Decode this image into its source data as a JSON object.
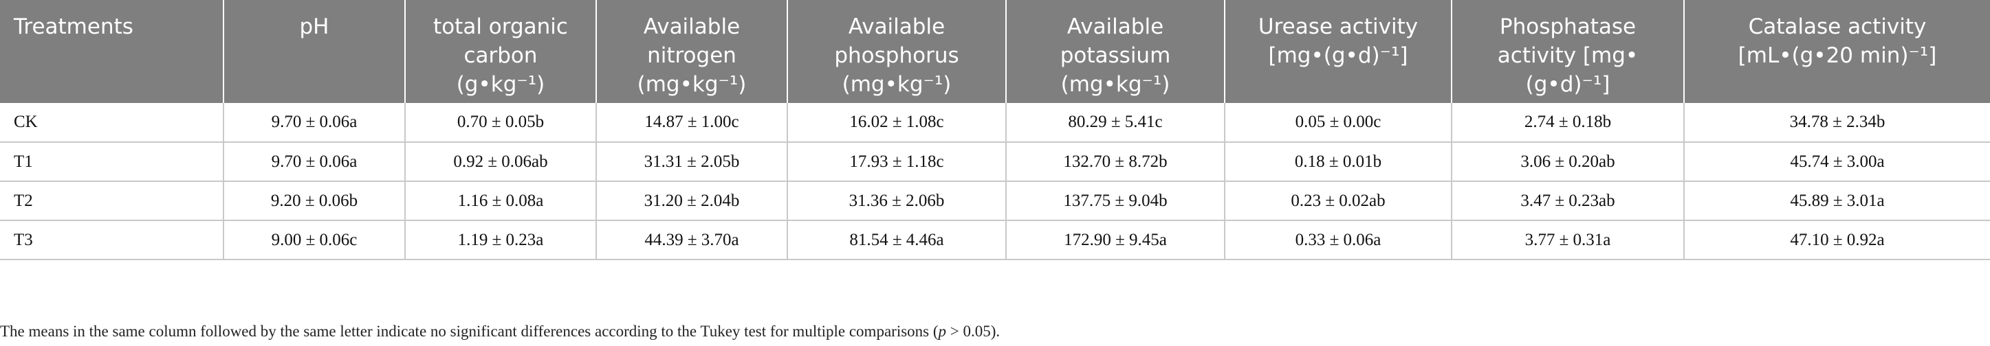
{
  "table": {
    "headers": [
      "Treatments",
      "pH",
      "total organic carbon (g•kg⁻¹)",
      "Available nitrogen (mg•kg⁻¹)",
      "Available phosphorus (mg•kg⁻¹)",
      "Available potassium (mg•kg⁻¹)",
      "Urease activity [mg•(g•d)⁻¹]",
      "Phosphatase activity [mg•(g•d)⁻¹]",
      "Catalase activity [mL•(g•20 min)⁻¹]"
    ],
    "header_lines": [
      [
        "Treatments"
      ],
      [
        "pH"
      ],
      [
        "total organic",
        "carbon",
        "(g•kg⁻¹)"
      ],
      [
        "Available",
        "nitrogen",
        "(mg•kg⁻¹)"
      ],
      [
        "Available",
        "phosphorus",
        "(mg•kg⁻¹)"
      ],
      [
        "Available",
        "potassium",
        "(mg•kg⁻¹)"
      ],
      [
        "Urease activity",
        "[mg•(g•d)⁻¹]"
      ],
      [
        "Phosphatase",
        "activity [mg•",
        "(g•d)⁻¹]"
      ],
      [
        "Catalase activity",
        "[mL•(g•20 min)⁻¹]"
      ]
    ],
    "rows": [
      [
        "CK",
        "9.70 ± 0.06a",
        "0.70 ± 0.05b",
        "14.87 ± 1.00c",
        "16.02 ± 1.08c",
        "80.29 ± 5.41c",
        "0.05 ± 0.00c",
        "2.74 ± 0.18b",
        "34.78 ± 2.34b"
      ],
      [
        "T1",
        "9.70 ± 0.06a",
        "0.92 ± 0.06ab",
        "31.31 ± 2.05b",
        "17.93 ± 1.18c",
        "132.70 ± 8.72b",
        "0.18 ± 0.01b",
        "3.06 ± 0.20ab",
        "45.74 ± 3.00a"
      ],
      [
        "T2",
        "9.20 ± 0.06b",
        "1.16 ± 0.08a",
        "31.20 ± 2.04b",
        "31.36 ± 2.06b",
        "137.75 ± 9.04b",
        "0.23 ± 0.02ab",
        "3.47 ± 0.23ab",
        "45.89 ± 3.01a"
      ],
      [
        "T3",
        "9.00 ± 0.06c",
        "1.19 ± 0.23a",
        "44.39 ± 3.70a",
        "81.54 ± 4.46a",
        "172.90 ± 9.45a",
        "0.33 ± 0.06a",
        "3.77 ± 0.31a",
        "47.10 ± 0.92a"
      ]
    ]
  },
  "footnote": {
    "before": "The means in the same column followed by the same letter indicate no significant differences according to the Tukey test for multiple comparisons (",
    "italic": "p",
    "after": " > 0.05)."
  },
  "colors": {
    "header_bg": "#7f7f7f",
    "header_text": "#ffffff",
    "rule": "#c8c8c8"
  }
}
